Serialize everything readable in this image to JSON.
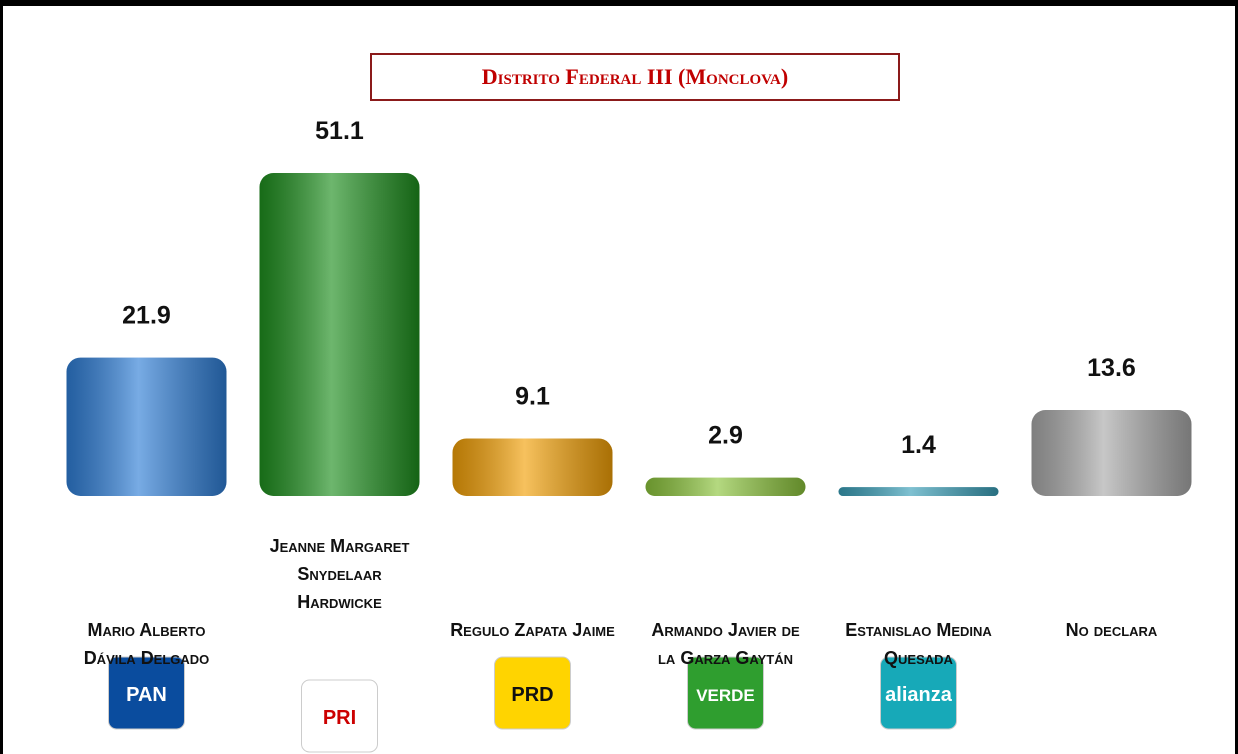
{
  "chart_data": {
    "type": "bar",
    "title": "Distrito Federal III (Monclova)",
    "categories": [
      "Mario Alberto Dávila Delgado",
      "Jeanne Margaret Snydelaar Hardwicke",
      "Regulo Zapata Jaime",
      "Armando Javier de la Garza Gaytán",
      "Estanislao Medina Quesada",
      "No declara"
    ],
    "values": [
      21.9,
      51.1,
      9.1,
      2.9,
      1.4,
      13.6
    ],
    "colors": [
      "#2f7ed6",
      "#1f8f1f",
      "#f2a007",
      "#8cc43c",
      "#3a9fb8",
      "#a9a9a9"
    ],
    "logos": [
      "PAN",
      "PRI",
      "PRD",
      "VERDE",
      "alianza",
      null
    ]
  }
}
